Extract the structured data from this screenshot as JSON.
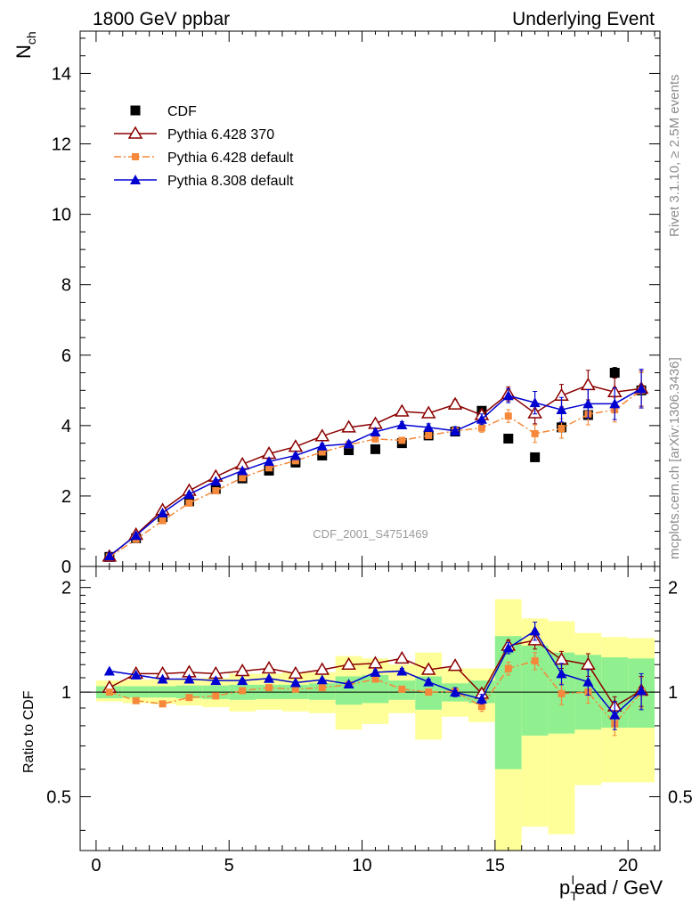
{
  "header": {
    "left": "1800 GeV ppbar",
    "right": "Underlying Event"
  },
  "side_text": {
    "top": "Rivet 3.1.10, ≥ 2.5M events",
    "bottom": "mcplots.cern.ch [arXiv:1306.3436]"
  },
  "watermark": "CDF_2001_S4751469",
  "axis": {
    "ylabel_main": "N",
    "ylabel_main_sub": "ch",
    "ylabel_ratio": "Ratio to CDF",
    "xlabel_p": "p",
    "xlabel_sup": "l",
    "xlabel_sub": "T",
    "xlabel_rest": "ead / GeV"
  },
  "legend": [
    {
      "label": "CDF",
      "color": "#000000",
      "marker": "filled-square",
      "line": "none"
    },
    {
      "label": "Pythia 6.428 370",
      "color": "#8b0000",
      "marker": "open-triangle",
      "line": "solid"
    },
    {
      "label": "Pythia 6.428 default",
      "color": "#f5883a",
      "marker": "small-square",
      "line": "dashdot"
    },
    {
      "label": "Pythia 8.308 default",
      "color": "#0000d0",
      "marker": "filled-triangle",
      "line": "solid"
    }
  ],
  "chart_data": [
    {
      "type": "line",
      "panel": "main",
      "xlim": [
        -0.6,
        21.2
      ],
      "ylim": [
        0,
        15.2
      ],
      "yticks": [
        0,
        2,
        4,
        6,
        8,
        10,
        12,
        14
      ],
      "ytick_labels": [
        "0",
        "2",
        "4",
        "6",
        "8",
        "10",
        "12",
        "14"
      ],
      "legend_position": "top-left",
      "grid": false,
      "x": [
        0.5,
        1.5,
        2.5,
        3.5,
        4.5,
        5.5,
        6.5,
        7.5,
        8.5,
        9.5,
        10.5,
        11.5,
        12.5,
        13.5,
        14.5,
        15.5,
        16.5,
        17.5,
        18.5,
        19.5,
        20.5
      ],
      "series": [
        {
          "name": "CDF",
          "color": "#000000",
          "values": [
            0.27,
            0.8,
            1.4,
            1.85,
            2.2,
            2.5,
            2.72,
            2.95,
            3.15,
            3.3,
            3.33,
            3.5,
            3.72,
            3.83,
            4.42,
            3.63,
            3.1,
            3.95,
            4.3,
            5.5,
            5.0
          ],
          "errors": [
            0.02,
            0.03,
            0.04,
            0.05,
            0.05,
            0.05,
            0.05,
            0.05,
            0.05,
            0.05,
            0.05,
            0.05,
            0.05,
            0.05,
            0.1,
            0.05,
            0.05,
            0.05,
            0.08,
            0.15,
            0.1
          ]
        },
        {
          "name": "Pythia 6.428 370",
          "color": "#8b0000",
          "values": [
            0.28,
            0.9,
            1.6,
            2.15,
            2.55,
            2.9,
            3.2,
            3.4,
            3.7,
            3.95,
            4.05,
            4.4,
            4.35,
            4.6,
            4.3,
            4.9,
            4.35,
            4.85,
            5.15,
            4.95,
            5.05
          ],
          "errors": [
            0.02,
            0.03,
            0.04,
            0.05,
            0.05,
            0.06,
            0.06,
            0.06,
            0.07,
            0.07,
            0.08,
            0.09,
            0.1,
            0.13,
            0.15,
            0.2,
            0.3,
            0.32,
            0.42,
            0.4,
            0.5
          ]
        },
        {
          "name": "Pythia 6.428 default",
          "color": "#f5883a",
          "values": [
            0.27,
            0.77,
            1.3,
            1.8,
            2.15,
            2.52,
            2.8,
            3.0,
            3.25,
            3.45,
            3.62,
            3.58,
            3.72,
            3.85,
            3.93,
            4.27,
            3.77,
            3.92,
            4.32,
            4.45,
            5.0
          ],
          "errors": [
            0.02,
            0.03,
            0.04,
            0.04,
            0.05,
            0.05,
            0.05,
            0.06,
            0.06,
            0.06,
            0.07,
            0.07,
            0.08,
            0.09,
            0.12,
            0.18,
            0.25,
            0.28,
            0.3,
            0.35,
            0.5
          ]
        },
        {
          "name": "Pythia 8.308 default",
          "color": "#0000d0",
          "values": [
            0.3,
            0.88,
            1.52,
            2.05,
            2.42,
            2.72,
            2.98,
            3.15,
            3.42,
            3.48,
            3.82,
            4.02,
            3.95,
            3.85,
            4.18,
            4.85,
            4.65,
            4.45,
            4.62,
            4.62,
            5.05
          ],
          "errors": [
            0.02,
            0.03,
            0.04,
            0.05,
            0.05,
            0.05,
            0.06,
            0.06,
            0.07,
            0.08,
            0.08,
            0.09,
            0.1,
            0.12,
            0.15,
            0.2,
            0.32,
            0.35,
            0.4,
            0.45,
            0.55
          ]
        }
      ]
    },
    {
      "type": "line",
      "panel": "ratio",
      "xlim": [
        -0.6,
        21.2
      ],
      "ylim": [
        0.35,
        2.3
      ],
      "yscale": "log",
      "yticks": [
        0.5,
        1,
        2
      ],
      "ytick_labels": [
        "0.5",
        "1",
        "2"
      ],
      "xticks": [
        0,
        5,
        10,
        15,
        20
      ],
      "xtick_labels": [
        "0",
        "5",
        "10",
        "15",
        "20"
      ],
      "grid": false,
      "x": [
        0.5,
        1.5,
        2.5,
        3.5,
        4.5,
        5.5,
        6.5,
        7.5,
        8.5,
        9.5,
        10.5,
        11.5,
        12.5,
        13.5,
        14.5,
        15.5,
        16.5,
        17.5,
        18.5,
        19.5,
        20.5
      ],
      "bands": {
        "inner_color": "#90f090",
        "outer_color": "#ffff99",
        "x_low": [
          0,
          1,
          2,
          3,
          4,
          5,
          6,
          7,
          8,
          9,
          10,
          11,
          12,
          13,
          14,
          15,
          16,
          17,
          18,
          19,
          20
        ],
        "x_high": [
          1,
          2,
          3,
          4,
          5,
          6,
          7,
          8,
          9,
          10,
          11,
          12,
          13,
          14,
          15,
          16,
          17,
          18,
          19,
          20,
          21
        ],
        "inner_low": [
          0.96,
          0.965,
          0.965,
          0.96,
          0.955,
          0.95,
          0.955,
          0.955,
          0.95,
          0.92,
          0.93,
          0.95,
          0.89,
          0.94,
          0.93,
          0.6,
          0.75,
          0.76,
          0.78,
          0.79,
          0.79
        ],
        "inner_high": [
          1.04,
          1.04,
          1.04,
          1.045,
          1.045,
          1.05,
          1.05,
          1.05,
          1.06,
          1.11,
          1.12,
          1.08,
          1.11,
          1.06,
          1.08,
          1.45,
          1.36,
          1.3,
          1.28,
          1.26,
          1.25
        ],
        "outer_low": [
          0.94,
          0.93,
          0.925,
          0.915,
          0.905,
          0.88,
          0.89,
          0.88,
          0.87,
          0.78,
          0.81,
          0.87,
          0.73,
          0.85,
          0.82,
          0.35,
          0.41,
          0.39,
          0.54,
          0.55,
          0.55
        ],
        "outer_high": [
          1.08,
          1.085,
          1.09,
          1.095,
          1.1,
          1.13,
          1.13,
          1.14,
          1.14,
          1.27,
          1.25,
          1.2,
          1.3,
          1.17,
          1.17,
          1.85,
          1.63,
          1.6,
          1.48,
          1.44,
          1.43
        ]
      },
      "series": [
        {
          "name": "Pythia 6.428 370",
          "color": "#8b0000",
          "values": [
            1.03,
            1.13,
            1.13,
            1.14,
            1.13,
            1.15,
            1.17,
            1.13,
            1.16,
            1.2,
            1.21,
            1.25,
            1.16,
            1.19,
            0.99,
            1.36,
            1.41,
            1.24,
            1.2,
            0.91,
            1.01
          ],
          "errors": [
            0.01,
            0.01,
            0.01,
            0.01,
            0.01,
            0.01,
            0.01,
            0.01,
            0.01,
            0.01,
            0.02,
            0.02,
            0.02,
            0.03,
            0.03,
            0.05,
            0.08,
            0.07,
            0.09,
            0.06,
            0.1
          ]
        },
        {
          "name": "Pythia 6.428 default",
          "color": "#f5883a",
          "values": [
            1.0,
            0.945,
            0.925,
            0.965,
            0.975,
            1.01,
            1.03,
            1.02,
            1.03,
            1.05,
            1.09,
            1.02,
            1.0,
            1.005,
            0.91,
            1.17,
            1.23,
            0.99,
            1.0,
            0.81,
            1.0
          ],
          "errors": [
            0.01,
            0.01,
            0.01,
            0.01,
            0.01,
            0.01,
            0.01,
            0.01,
            0.01,
            0.01,
            0.01,
            0.01,
            0.02,
            0.02,
            0.03,
            0.05,
            0.07,
            0.07,
            0.07,
            0.06,
            0.1
          ]
        },
        {
          "name": "Pythia 8.308 default",
          "color": "#0000d0",
          "values": [
            1.15,
            1.12,
            1.09,
            1.09,
            1.08,
            1.08,
            1.095,
            1.065,
            1.085,
            1.055,
            1.14,
            1.15,
            1.07,
            1.0,
            0.955,
            1.34,
            1.5,
            1.13,
            1.07,
            0.86,
            1.01
          ],
          "errors": [
            0.01,
            0.01,
            0.01,
            0.01,
            0.01,
            0.01,
            0.01,
            0.01,
            0.01,
            0.01,
            0.02,
            0.02,
            0.02,
            0.03,
            0.03,
            0.05,
            0.09,
            0.08,
            0.09,
            0.08,
            0.12
          ]
        }
      ]
    }
  ]
}
